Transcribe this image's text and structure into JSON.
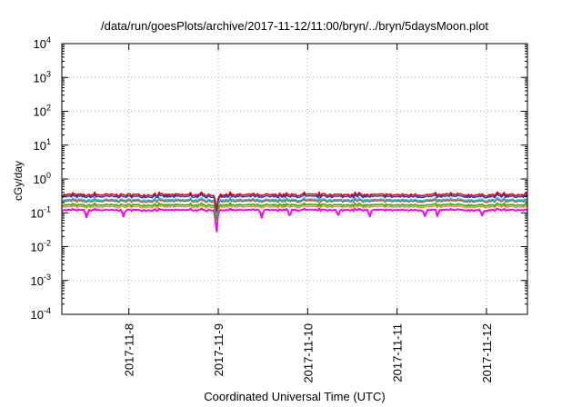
{
  "chart_data": {
    "type": "line",
    "title": "/data/run/goesPlots/archive/2017-11-12/11:00/bryn/../bryn/5daysMoon.plot",
    "xlabel": "Coordinated Universal Time (UTC)",
    "ylabel": "cGy/day",
    "y_scale": "log",
    "ylim": [
      0.0001,
      10000
    ],
    "y_ticks": [
      {
        "value": 0.0001,
        "base": "10",
        "exp": "-4"
      },
      {
        "value": 0.001,
        "base": "10",
        "exp": "-3"
      },
      {
        "value": 0.01,
        "base": "10",
        "exp": "-2"
      },
      {
        "value": 0.1,
        "base": "10",
        "exp": "-1"
      },
      {
        "value": 1,
        "base": "10",
        "exp": "0"
      },
      {
        "value": 10,
        "base": "10",
        "exp": "1"
      },
      {
        "value": 100,
        "base": "10",
        "exp": "2"
      },
      {
        "value": 1000,
        "base": "10",
        "exp": "3"
      },
      {
        "value": 10000,
        "base": "10",
        "exp": "4"
      }
    ],
    "xlim": [
      "2017-11-07 06:00",
      "2017-11-12 11:00"
    ],
    "x_ticks": [
      {
        "value": "2017-11-08",
        "label": "2017-11-8"
      },
      {
        "value": "2017-11-09",
        "label": "2017-11-9"
      },
      {
        "value": "2017-11-10",
        "label": "2017-11-10"
      },
      {
        "value": "2017-11-11",
        "label": "2017-11-11"
      },
      {
        "value": "2017-11-12",
        "label": "2017-11-12"
      }
    ],
    "grid": true,
    "legend": "none",
    "series": [
      {
        "color": "#ff00ff",
        "level": 0.12
      },
      {
        "color": "#ff8c00",
        "level": 0.15
      },
      {
        "color": "#00c000",
        "level": 0.17
      },
      {
        "color": "#ff3030",
        "level": 0.22
      },
      {
        "color": "#00d0d0",
        "level": 0.24
      },
      {
        "color": "#2a2ae0",
        "level": 0.3
      },
      {
        "color": "#e00000",
        "level": 0.34
      }
    ],
    "dips": [
      {
        "time": "2017-11-07 12:40",
        "value": 0.07
      },
      {
        "time": "2017-11-07 22:30",
        "value": 0.075
      },
      {
        "time": "2017-11-08 23:30",
        "value": 0.025
      },
      {
        "time": "2017-11-09 11:40",
        "value": 0.07
      },
      {
        "time": "2017-11-09 19:10",
        "value": 0.075
      },
      {
        "time": "2017-11-10 08:10",
        "value": 0.08
      },
      {
        "time": "2017-11-10 16:40",
        "value": 0.075
      },
      {
        "time": "2017-11-11 07:30",
        "value": 0.075
      },
      {
        "time": "2017-11-11 10:50",
        "value": 0.075
      },
      {
        "time": "2017-11-11 22:50",
        "value": 0.08
      }
    ]
  }
}
